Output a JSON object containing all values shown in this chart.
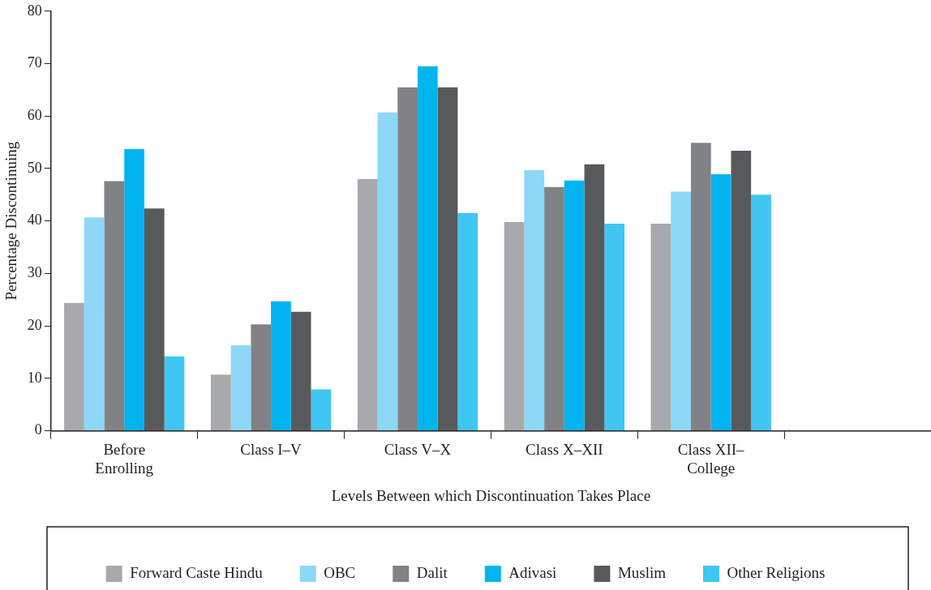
{
  "chart_data": {
    "type": "bar",
    "xlabel": "Levels Between which Discontinuation Takes Place",
    "ylabel": "Percentage Discontinuing",
    "categories": [
      "Before Enrolling",
      "Class I–V",
      "Class V–X",
      "Class X–XII",
      "Class XII–College",
      null
    ],
    "ylim": [
      0,
      80
    ],
    "yticks": [
      0,
      10,
      20,
      30,
      40,
      50,
      60,
      70,
      80
    ],
    "grid": false,
    "legend": "bottom",
    "series": [
      {
        "name": "Forward Caste Hindu",
        "color": "#a7a9ac",
        "values": [
          24.4,
          10.7,
          48.0,
          39.8,
          39.5,
          null
        ]
      },
      {
        "name": "OBC",
        "color": "#8dd7f7",
        "values": [
          40.7,
          16.3,
          60.7,
          49.7,
          45.6,
          null
        ]
      },
      {
        "name": "Dalit",
        "color": "#808285",
        "values": [
          47.6,
          20.3,
          65.5,
          46.5,
          54.9,
          null
        ]
      },
      {
        "name": "Adivasi",
        "color": "#00b5ef",
        "values": [
          53.7,
          24.7,
          69.5,
          47.7,
          48.9,
          null
        ]
      },
      {
        "name": "Muslim",
        "color": "#58595b",
        "values": [
          42.4,
          22.7,
          65.5,
          50.8,
          53.4,
          null
        ]
      },
      {
        "name": "Other Religions",
        "color": "#3fc6f2",
        "values": [
          14.2,
          7.9,
          41.5,
          39.5,
          45.0,
          null
        ]
      }
    ]
  }
}
